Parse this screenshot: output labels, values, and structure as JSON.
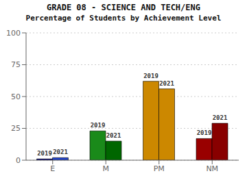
{
  "chart_data": {
    "type": "bar",
    "title": "GRADE 08 - SCIENCE AND TECH/ENG",
    "subtitle": "Percentage of Students by Achievement Level",
    "categories": [
      "E",
      "M",
      "PM",
      "NM"
    ],
    "series": [
      {
        "name": "2019",
        "colors": [
          "#00008B",
          "#1a8a1a",
          "#cc8800",
          "#990000"
        ],
        "values": [
          1,
          23,
          62,
          17
        ]
      },
      {
        "name": "2021",
        "colors": [
          "#2244cc",
          "#006600",
          "#cc8800",
          "#880000"
        ],
        "values": [
          2,
          15,
          56,
          29
        ]
      }
    ],
    "ylim": [
      0,
      100
    ],
    "yticks": [
      0,
      25,
      50,
      75,
      100
    ],
    "grid": true
  }
}
